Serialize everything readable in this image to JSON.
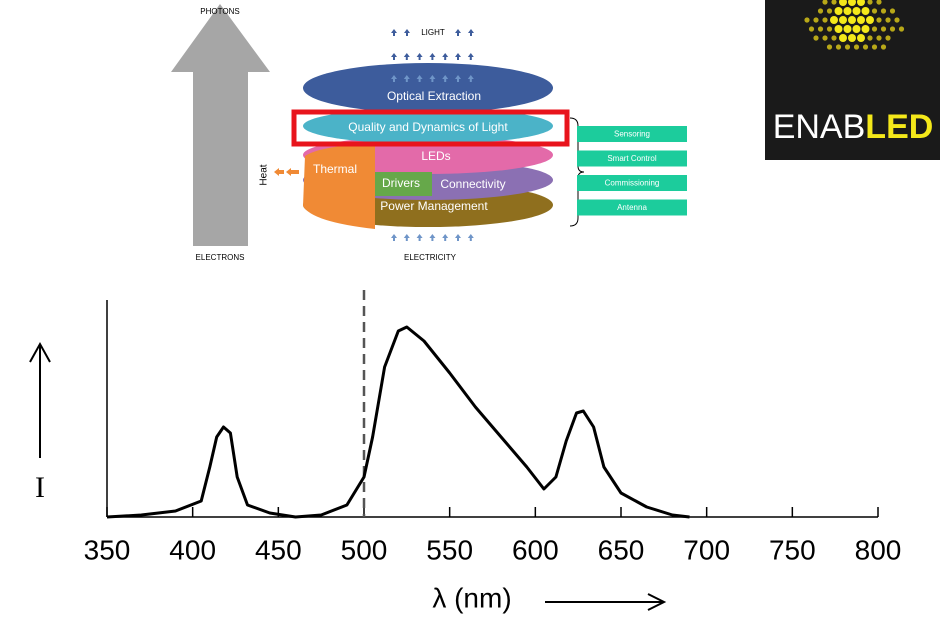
{
  "diagram": {
    "photons": "PHOTONS",
    "electrons": "ELECTRONS",
    "light": "LIGHT",
    "electricity": "ELECTRICITY",
    "heat": "Heat",
    "layers": {
      "optical_extraction": "Optical Extraction",
      "quality": "Quality and Dynamics of Light",
      "leds": "LEDs",
      "thermal": "Thermal",
      "drivers": "Drivers",
      "connectivity": "Connectivity",
      "power_management": "Power Management"
    },
    "features": [
      "Sensoring",
      "Smart Control",
      "Commissioning",
      "Antenna"
    ]
  },
  "logo": {
    "text_main": "ENAB",
    "text_highlight": "LED"
  },
  "chart_data": {
    "type": "line",
    "xlabel": "λ (nm)",
    "ylabel": "I",
    "x": [
      350,
      370,
      390,
      405,
      410,
      414,
      418,
      422,
      426,
      432,
      445,
      460,
      475,
      490,
      500,
      505,
      512,
      520,
      525,
      535,
      550,
      565,
      580,
      595,
      605,
      612,
      618,
      624,
      628,
      634,
      640,
      650,
      665,
      680,
      690
    ],
    "values": [
      0.0,
      0.01,
      0.03,
      0.08,
      0.25,
      0.4,
      0.45,
      0.42,
      0.2,
      0.06,
      0.02,
      0.0,
      0.01,
      0.06,
      0.2,
      0.4,
      0.75,
      0.93,
      0.95,
      0.88,
      0.72,
      0.55,
      0.4,
      0.25,
      0.14,
      0.2,
      0.38,
      0.52,
      0.53,
      0.45,
      0.25,
      0.12,
      0.05,
      0.01,
      0.0
    ],
    "color": "#000000",
    "xlim": [
      350,
      800
    ],
    "xticks": [
      350,
      400,
      450,
      500,
      550,
      600,
      650,
      700,
      750,
      800
    ],
    "ylim": [
      0,
      1
    ],
    "vline": 500
  }
}
